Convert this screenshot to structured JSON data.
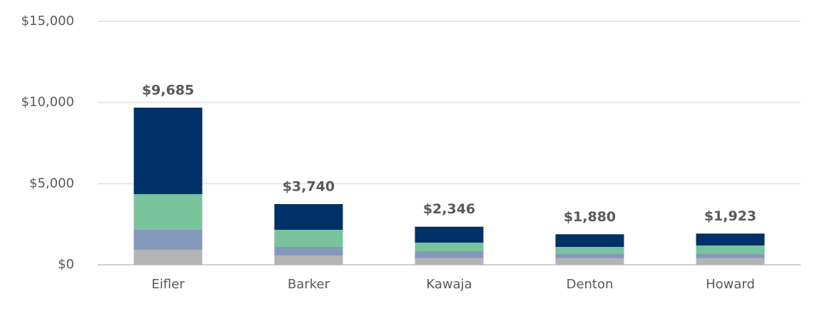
{
  "chart_data": {
    "type": "stacked-bar",
    "categories": [
      "Eifler",
      "Barker",
      "Kawaja",
      "Denton",
      "Howard"
    ],
    "series": [
      {
        "color": "#b4b4b4",
        "values": [
          925,
          570,
          400,
          400,
          400
        ]
      },
      {
        "color": "#8599bb",
        "values": [
          1230,
          530,
          435,
          260,
          260
        ]
      },
      {
        "color": "#78c39c",
        "values": [
          2200,
          1055,
          530,
          440,
          530
        ]
      },
      {
        "color": "#003068",
        "values": [
          5330,
          1585,
          981,
          780,
          733
        ]
      }
    ],
    "totals": [
      9685,
      3740,
      2346,
      1880,
      1923
    ],
    "total_labels": [
      "$9,685",
      "$3,740",
      "$2,346",
      "$1,880",
      "$1,923"
    ],
    "ylim": [
      0,
      15000
    ],
    "yticks": [
      {
        "value": 0,
        "label": "$0"
      },
      {
        "value": 5000,
        "label": "$5,000"
      },
      {
        "value": 10000,
        "label": "$10,000"
      },
      {
        "value": 15000,
        "label": "$15,000"
      }
    ],
    "grid": true
  }
}
